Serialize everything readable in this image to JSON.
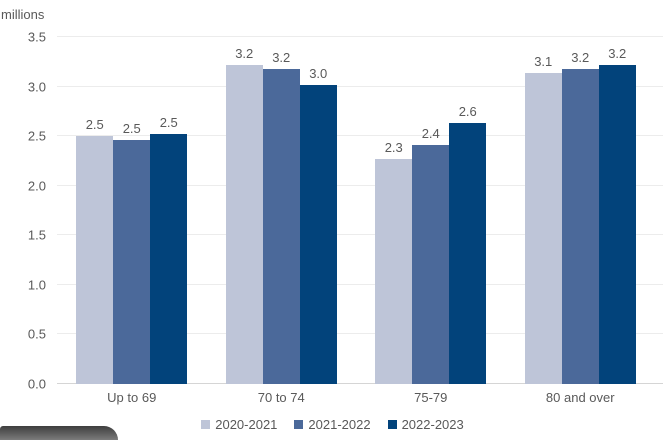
{
  "chart_data": {
    "type": "bar",
    "title": "",
    "unit_label": "millions",
    "categories": [
      "Up to 69",
      "70 to 74",
      "75-79",
      "80 and over"
    ],
    "series": [
      {
        "name": "2020-2021",
        "color": "#bec5d8",
        "values": [
          2.5,
          3.2,
          2.3,
          3.1
        ],
        "labels": [
          "2.5",
          "3.2",
          "2.3",
          "3.1"
        ],
        "precise": [
          2.5,
          3.22,
          2.27,
          3.14
        ]
      },
      {
        "name": "2021-2022",
        "color": "#4b699a",
        "values": [
          2.5,
          3.2,
          2.4,
          3.2
        ],
        "labels": [
          "2.5",
          "3.2",
          "2.4",
          "3.2"
        ],
        "precise": [
          2.465,
          3.18,
          2.41,
          3.18
        ]
      },
      {
        "name": "2022-2023",
        "color": "#02437b",
        "values": [
          2.5,
          3.0,
          2.6,
          3.2
        ],
        "labels": [
          "2.5",
          "3.0",
          "2.6",
          "3.2"
        ],
        "precise": [
          2.52,
          3.02,
          2.63,
          3.22
        ]
      }
    ],
    "ylim": [
      0,
      3.5
    ],
    "yticks": [
      "0.0",
      "0.5",
      "1.0",
      "1.5",
      "2.0",
      "2.5",
      "3.0",
      "3.5"
    ],
    "grid": true,
    "legend_position": "bottom"
  },
  "colors": {
    "axis_text": "#595959",
    "gridline": "#ececec",
    "baseline": "#d5d5d5",
    "partial_button_top": "#3e3e3e",
    "partial_button_bottom": "#8a8a8a"
  }
}
